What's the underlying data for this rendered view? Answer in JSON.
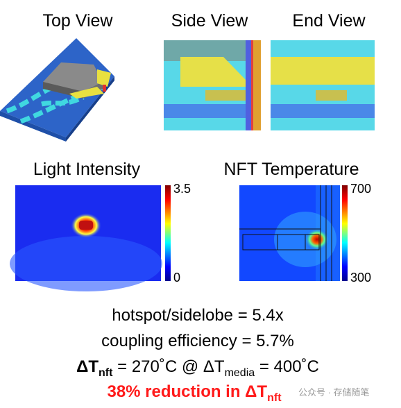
{
  "panels": [
    {
      "title": "Top View"
    },
    {
      "title": "Side View"
    },
    {
      "title": "End View"
    }
  ],
  "maps": [
    {
      "title": "Light Intensity",
      "max": 3.5,
      "min": 0
    },
    {
      "title": "NFT Temperature",
      "max": 700,
      "min": 300
    }
  ],
  "results": [
    {
      "text": "hotspot/sidelobe = 5.4x"
    },
    {
      "text": "coupling efficiency = 5.7%"
    },
    {
      "parts": [
        "ΔT",
        "nft",
        " = 270˚C @ ΔT",
        "media",
        " = 400˚C"
      ]
    },
    {
      "parts": [
        "38% reduction in ΔT",
        "nft"
      ]
    }
  ],
  "watermark": "公众号 · 存储随笔"
}
